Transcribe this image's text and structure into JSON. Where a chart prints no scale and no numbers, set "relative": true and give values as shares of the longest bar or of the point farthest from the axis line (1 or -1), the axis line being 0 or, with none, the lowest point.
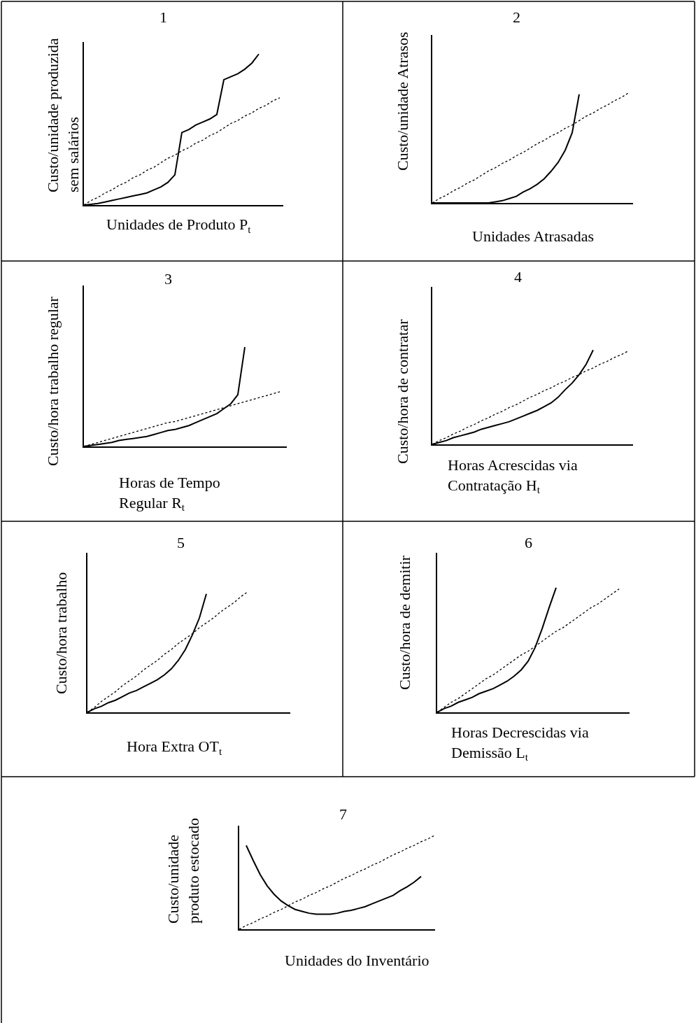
{
  "chart_data": [
    {
      "type": "line",
      "title": "1",
      "xlabel": "Unidades de Produto P$_{t}$",
      "ylabel": "Custo/unidade produzida\nsem salários",
      "relative": true,
      "categories": [
        null,
        null,
        null,
        null,
        null,
        null,
        null,
        null,
        null,
        null,
        null,
        null,
        null,
        null,
        null,
        null,
        null,
        null,
        null,
        null,
        null,
        null,
        null,
        null,
        null,
        null,
        null,
        null,
        null
      ],
      "series": [
        {
          "color": "#000000",
          "line_style": "solid",
          "values": [
            0,
            0.005,
            0.01,
            0.02,
            0.03,
            0.04,
            0.05,
            0.06,
            0.07,
            0.08,
            0.1,
            0.12,
            0.15,
            0.2,
            0.48,
            0.5,
            0.53,
            0.55,
            0.57,
            0.6,
            0.83,
            0.85,
            0.87,
            0.9,
            0.94,
            1,
            null,
            null,
            null
          ]
        },
        {
          "color": "#000000",
          "line_style": "dotted",
          "values": [
            0,
            0.03,
            0.05,
            0.08,
            0.1,
            0.13,
            0.15,
            0.18,
            0.2,
            0.23,
            0.25,
            0.28,
            0.31,
            0.33,
            0.36,
            0.38,
            0.41,
            0.43,
            0.46,
            0.48,
            0.51,
            0.54,
            0.56,
            0.59,
            0.61,
            0.64,
            0.66,
            0.69,
            0.71
          ]
        }
      ]
    },
    {
      "type": "line",
      "title": "2",
      "xlabel": "Unidades Atrasadas",
      "ylabel": "Custo/unidade Atrasos",
      "relative": true,
      "categories": [
        null,
        null,
        null,
        null,
        null,
        null,
        null,
        null,
        null,
        null,
        null,
        null,
        null,
        null,
        null,
        null,
        null,
        null,
        null,
        null,
        null,
        null,
        null,
        null,
        null,
        null,
        null,
        null,
        null
      ],
      "series": [
        {
          "color": "#000000",
          "line_style": "solid",
          "values": [
            0,
            0,
            0,
            0,
            0,
            0,
            0,
            0,
            0,
            0.01,
            0.02,
            0.04,
            0.06,
            0.1,
            0.13,
            0.17,
            0.22,
            0.29,
            0.37,
            0.48,
            0.64,
            0.99,
            null,
            null,
            null,
            null,
            null,
            null,
            null
          ]
        },
        {
          "color": "#000000",
          "line_style": "dotted",
          "values": [
            0,
            0.04,
            0.07,
            0.11,
            0.14,
            0.18,
            0.21,
            0.25,
            0.29,
            0.32,
            0.36,
            0.39,
            0.43,
            0.46,
            0.5,
            0.54,
            0.57,
            0.61,
            0.64,
            0.68,
            0.71,
            0.75,
            0.79,
            0.82,
            0.86,
            0.89,
            0.93,
            0.96,
            1
          ]
        }
      ]
    },
    {
      "type": "line",
      "title": "3",
      "xlabel": "Horas de Tempo\nRegular R$_{t}$",
      "ylabel": "Custo/hora trabalho regular",
      "relative": true,
      "categories": [
        null,
        null,
        null,
        null,
        null,
        null,
        null,
        null,
        null,
        null,
        null,
        null,
        null,
        null,
        null,
        null,
        null,
        null,
        null,
        null,
        null,
        null,
        null,
        null,
        null,
        null,
        null,
        null,
        null
      ],
      "series": [
        {
          "color": "#000000",
          "line_style": "solid",
          "values": [
            0,
            0.01,
            0.02,
            0.03,
            0.04,
            0.06,
            0.07,
            0.08,
            0.09,
            0.1,
            0.12,
            0.14,
            0.16,
            0.17,
            0.19,
            0.21,
            0.24,
            0.27,
            0.3,
            0.33,
            0.38,
            0.43,
            0.52,
            1,
            null,
            null,
            null,
            null,
            null
          ]
        },
        {
          "color": "#000000",
          "line_style": "dotted",
          "values": [
            0,
            0.02,
            0.04,
            0.06,
            0.08,
            0.1,
            0.12,
            0.14,
            0.16,
            0.18,
            0.2,
            0.22,
            0.24,
            0.25,
            0.27,
            0.29,
            0.31,
            0.33,
            0.35,
            0.37,
            0.39,
            0.41,
            0.43,
            0.45,
            0.47,
            0.49,
            0.51,
            0.53,
            0.55
          ]
        }
      ]
    },
    {
      "type": "line",
      "title": "4",
      "xlabel": "Horas Acrescidas via\nContratação H$_{t}$",
      "ylabel": "Custo/hora de contratar",
      "relative": true,
      "categories": [
        null,
        null,
        null,
        null,
        null,
        null,
        null,
        null,
        null,
        null,
        null,
        null,
        null,
        null,
        null,
        null,
        null,
        null,
        null,
        null,
        null,
        null,
        null,
        null,
        null,
        null,
        null,
        null,
        null
      ],
      "series": [
        {
          "color": "#000000",
          "line_style": "solid",
          "values": [
            0,
            0.02,
            0.04,
            0.07,
            0.09,
            0.11,
            0.13,
            0.16,
            0.18,
            0.2,
            0.22,
            0.24,
            0.27,
            0.3,
            0.33,
            0.36,
            0.4,
            0.44,
            0.5,
            0.58,
            0.65,
            0.74,
            0.85,
            1,
            null,
            null,
            null,
            null,
            null
          ]
        },
        {
          "color": "#000000",
          "line_style": "dotted",
          "values": [
            0,
            0.04,
            0.07,
            0.11,
            0.14,
            0.18,
            0.21,
            0.25,
            0.28,
            0.32,
            0.35,
            0.39,
            0.42,
            0.46,
            0.5,
            0.53,
            0.57,
            0.6,
            0.64,
            0.67,
            0.71,
            0.74,
            0.78,
            0.81,
            0.85,
            0.88,
            0.92,
            0.95,
            0.99
          ]
        }
      ]
    },
    {
      "type": "line",
      "title": "5",
      "xlabel": "Hora Extra OT$_{t}$",
      "ylabel": "Custo/hora trabalho",
      "relative": true,
      "categories": [
        null,
        null,
        null,
        null,
        null,
        null,
        null,
        null,
        null,
        null,
        null,
        null,
        null,
        null,
        null,
        null,
        null,
        null,
        null,
        null,
        null,
        null,
        null,
        null
      ],
      "series": [
        {
          "color": "#000000",
          "line_style": "solid",
          "values": [
            0,
            0.03,
            0.05,
            0.08,
            0.1,
            0.13,
            0.16,
            0.18,
            0.21,
            0.24,
            0.27,
            0.31,
            0.36,
            0.43,
            0.52,
            0.64,
            0.78,
            0.98,
            null,
            null,
            null,
            null,
            null,
            null
          ]
        },
        {
          "color": "#000000",
          "line_style": "dotted",
          "values": [
            0,
            0.04,
            0.09,
            0.13,
            0.17,
            0.22,
            0.26,
            0.3,
            0.35,
            0.39,
            0.43,
            0.48,
            0.52,
            0.57,
            0.61,
            0.65,
            0.7,
            0.74,
            0.78,
            0.83,
            0.87,
            0.91,
            0.96,
            1
          ]
        }
      ]
    },
    {
      "type": "line",
      "title": "6",
      "xlabel": "Horas Decrescidas via\nDemissão L$_{t}$",
      "ylabel": "Custo/hora de demitir",
      "relative": true,
      "categories": [
        null,
        null,
        null,
        null,
        null,
        null,
        null,
        null,
        null,
        null,
        null,
        null,
        null,
        null,
        null,
        null,
        null,
        null,
        null,
        null,
        null,
        null,
        null,
        null,
        null,
        null,
        null
      ],
      "series": [
        {
          "color": "#000000",
          "line_style": "solid",
          "values": [
            0,
            0.03,
            0.05,
            0.08,
            0.1,
            0.12,
            0.15,
            0.17,
            0.19,
            0.22,
            0.25,
            0.29,
            0.34,
            0.41,
            0.52,
            0.67,
            0.84,
            1,
            null,
            null,
            null,
            null,
            null,
            null,
            null,
            null,
            null
          ]
        },
        {
          "color": "#000000",
          "line_style": "dotted",
          "values": [
            0,
            0.04,
            0.08,
            0.11,
            0.15,
            0.19,
            0.23,
            0.27,
            0.3,
            0.34,
            0.38,
            0.42,
            0.46,
            0.49,
            0.53,
            0.57,
            0.61,
            0.65,
            0.68,
            0.72,
            0.76,
            0.8,
            0.84,
            0.87,
            0.91,
            0.95,
            0.99
          ]
        }
      ]
    },
    {
      "type": "line",
      "title": "7",
      "xlabel": "Unidades do Inventário",
      "ylabel": "Custo/unidade\nproduto estocado",
      "relative": true,
      "categories": [
        null,
        null,
        null,
        null,
        null,
        null,
        null,
        null,
        null,
        null,
        null,
        null,
        null,
        null,
        null,
        null,
        null,
        null,
        null,
        null,
        null,
        null,
        null,
        null,
        null,
        null,
        null,
        null,
        null
      ],
      "series": [
        {
          "color": "#000000",
          "line_style": "solid",
          "values": [
            null,
            0.89,
            0.73,
            0.58,
            0.46,
            0.37,
            0.3,
            0.25,
            0.21,
            0.19,
            0.17,
            0.16,
            0.16,
            0.16,
            0.17,
            0.19,
            0.2,
            0.22,
            0.24,
            0.27,
            0.3,
            0.33,
            0.36,
            0.41,
            0.45,
            0.5,
            0.56,
            null,
            null
          ]
        },
        {
          "color": "#000000",
          "line_style": "dotted",
          "values": [
            0,
            0.04,
            0.07,
            0.11,
            0.14,
            0.18,
            0.21,
            0.25,
            0.29,
            0.32,
            0.36,
            0.39,
            0.43,
            0.46,
            0.5,
            0.54,
            0.57,
            0.61,
            0.64,
            0.68,
            0.71,
            0.75,
            0.79,
            0.82,
            0.86,
            0.89,
            0.93,
            0.96,
            1
          ]
        }
      ]
    }
  ]
}
